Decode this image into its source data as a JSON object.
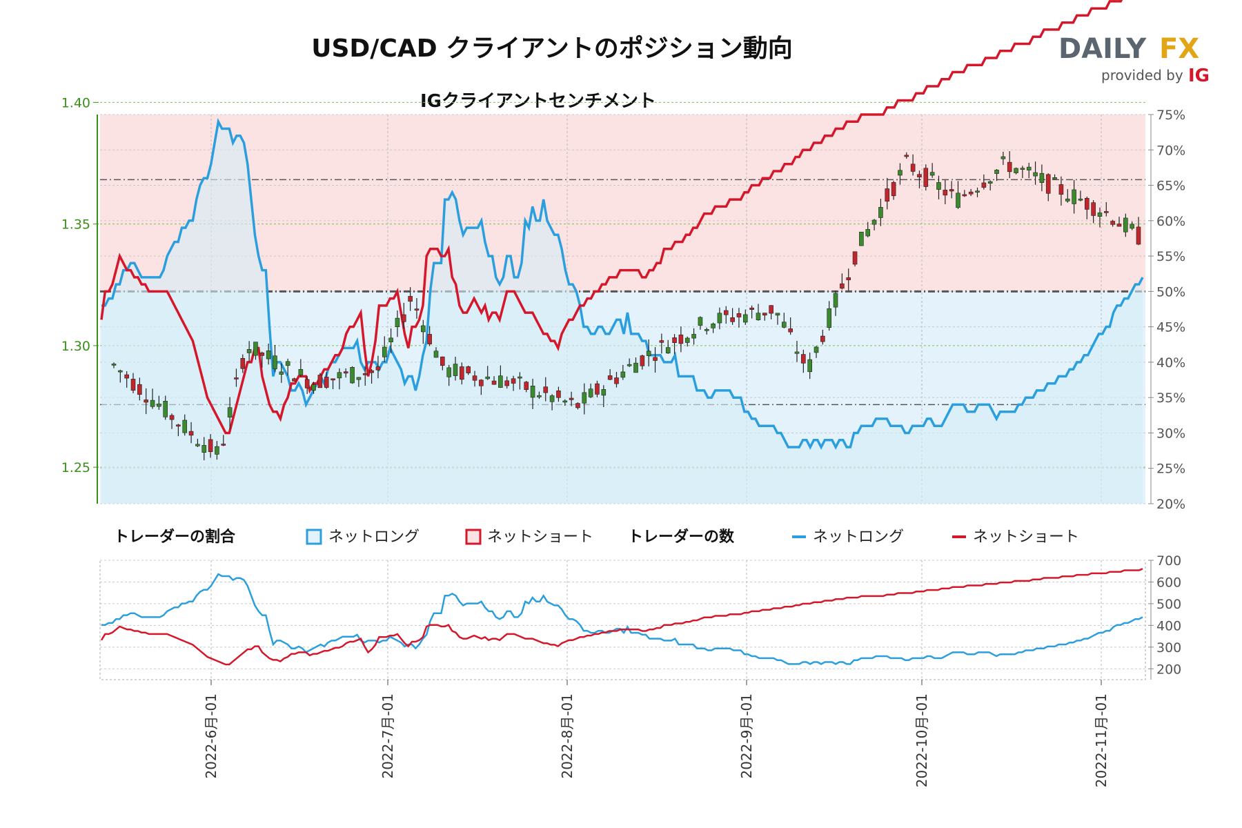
{
  "title": "USD/CAD クライアントのポジション動向",
  "logo": {
    "brand_a": "DAILY",
    "brand_b": "FX",
    "provided": "provided by",
    "ig": "IG"
  },
  "chart_data": [
    {
      "type": "candlestick",
      "subtitle": "IGクライアントセンチメント",
      "left_axis": {
        "ticks": [
          "1.40",
          "1.35",
          "1.30",
          "1.25"
        ],
        "ylim": [
          1.235,
          1.395
        ]
      },
      "right_axis": {
        "ticks": [
          "75%",
          "70%",
          "65%",
          "60%",
          "55%",
          "50%",
          "45%",
          "40%",
          "35%",
          "30%",
          "25%",
          "20%"
        ],
        "ylim": [
          20,
          75
        ]
      },
      "x_ticks": [
        "2022-6月-01",
        "2022-7月-01",
        "2022-8月-01",
        "2022-9月-01",
        "2022-10月-01",
        "2022-11月-01"
      ],
      "net_long_pct": [
        48,
        48,
        49,
        49,
        51,
        51,
        53,
        53,
        54,
        54,
        53,
        52,
        52,
        52,
        52,
        52,
        52,
        53,
        55,
        56,
        57,
        57,
        59,
        59,
        60,
        60,
        63,
        65,
        66,
        66,
        68,
        71,
        74,
        73,
        73,
        73,
        71,
        72,
        72,
        71,
        68,
        63,
        58,
        55,
        53,
        53,
        45,
        38,
        40,
        40,
        39,
        38,
        36,
        36,
        37,
        36,
        34,
        35,
        36,
        37,
        38,
        37,
        39,
        40,
        40,
        41,
        42,
        42,
        42,
        42,
        43,
        40,
        39,
        40,
        40,
        40,
        39,
        40,
        40,
        42,
        41,
        40,
        39,
        37,
        38,
        38,
        36,
        38,
        41,
        43,
        50,
        54,
        54,
        54,
        63,
        63,
        64,
        63,
        60,
        58,
        59,
        59,
        59,
        59,
        60,
        57,
        55,
        55,
        52,
        51,
        52,
        55,
        55,
        52,
        52,
        54,
        60,
        59,
        62,
        60,
        60,
        63,
        60,
        59,
        58,
        58,
        56,
        53,
        51,
        51,
        50,
        48,
        45,
        45,
        44,
        44,
        45,
        45,
        44,
        44,
        45,
        46,
        46,
        44,
        47,
        44,
        44,
        44,
        43,
        43,
        41,
        41,
        41,
        41,
        40,
        40,
        40,
        41,
        38,
        38,
        38,
        38,
        38,
        36,
        36,
        36,
        35,
        35,
        36,
        36,
        36,
        36,
        36,
        35,
        35,
        35,
        33,
        33,
        32,
        32,
        31,
        31,
        31,
        31,
        31,
        30,
        30,
        29,
        28,
        28,
        28,
        28,
        29,
        29,
        28,
        29,
        29,
        28,
        29,
        29,
        29,
        28,
        29,
        29,
        28,
        28,
        30,
        30,
        31,
        31,
        31,
        31,
        32,
        32,
        32,
        32,
        31,
        31,
        31,
        31,
        30,
        30,
        31,
        31,
        31,
        31,
        32,
        32,
        31,
        31,
        31,
        32,
        33,
        34,
        34,
        34,
        34,
        33,
        33,
        33,
        34,
        34,
        34,
        34,
        33,
        32,
        33,
        33,
        33,
        33,
        33,
        34,
        34,
        35,
        35,
        35,
        36,
        36,
        36,
        37,
        37,
        37,
        38,
        38,
        38,
        39,
        39,
        40,
        40,
        41,
        41,
        42,
        43,
        44,
        44,
        45,
        45,
        47,
        48,
        48,
        49,
        49,
        50,
        51,
        51,
        52
      ],
      "net_short_pct": [
        46,
        50,
        50,
        51,
        53,
        55,
        54,
        53,
        53,
        52,
        52,
        51,
        51,
        50,
        50,
        50,
        50,
        50,
        50,
        49,
        48,
        47,
        46,
        45,
        44,
        43,
        41,
        39,
        37,
        35,
        34,
        33,
        32,
        31,
        30,
        30,
        32,
        34,
        36,
        38,
        40,
        40,
        42,
        42,
        38,
        36,
        34,
        33,
        33,
        32,
        34,
        35,
        37,
        37,
        38,
        38,
        38,
        36,
        37,
        37,
        38,
        39,
        39,
        40,
        41,
        41,
        42,
        44,
        45,
        45,
        46,
        47,
        42,
        38,
        40,
        43,
        48,
        48,
        48,
        49,
        49,
        50,
        47,
        44,
        42,
        45,
        45,
        46,
        48,
        55,
        56,
        56,
        56,
        55,
        55,
        56,
        52,
        51,
        48,
        47,
        47,
        48,
        49,
        48,
        47,
        48,
        46,
        47,
        47,
        46,
        48,
        50,
        50,
        50,
        49,
        48,
        47,
        47,
        47,
        46,
        45,
        44,
        44,
        43,
        43,
        42,
        44,
        45,
        46,
        46,
        47,
        48,
        48,
        49,
        49,
        50,
        50,
        51,
        51,
        52,
        52,
        52,
        53,
        53,
        53,
        53,
        53,
        53,
        52,
        52,
        53,
        53,
        54,
        54,
        56,
        56,
        56,
        57,
        57,
        57,
        58,
        58,
        59,
        59,
        60,
        61,
        61,
        61,
        62,
        62,
        62,
        62,
        63,
        63,
        63,
        63,
        64,
        64,
        65,
        65,
        65,
        66,
        66,
        66,
        67,
        67,
        67,
        68,
        68,
        68,
        69,
        69,
        70,
        70,
        70,
        71,
        71,
        71,
        72,
        72,
        72,
        73,
        73,
        73,
        74,
        74,
        74,
        74,
        75,
        75,
        75,
        75,
        75,
        75,
        75,
        76,
        76,
        76,
        77,
        77,
        77,
        77,
        77,
        78,
        78,
        78,
        79,
        79,
        79,
        79,
        80,
        80,
        80,
        81,
        81,
        81,
        81,
        82,
        82,
        82,
        82,
        82,
        83,
        83,
        83,
        83,
        84,
        84,
        84,
        84,
        85,
        85,
        85,
        85,
        85,
        86,
        86,
        86,
        87,
        87,
        87,
        87,
        87,
        88,
        88,
        88,
        88,
        89,
        89,
        89,
        89,
        90,
        90,
        90,
        90,
        90,
        91,
        91,
        91,
        91,
        92,
        92,
        92,
        92,
        92,
        93
      ]
    },
    {
      "type": "line",
      "label": "トレーダーの数",
      "right_axis": {
        "ticks": [
          "700",
          "600",
          "500",
          "400",
          "300",
          "200"
        ],
        "ylim": [
          150,
          700
        ]
      },
      "series": [
        {
          "name": "ネットロング",
          "color": "#2b9fde"
        },
        {
          "name": "ネットショート",
          "color": "#d4172a"
        }
      ]
    }
  ],
  "legend": {
    "ratio_label": "トレーダーの割合",
    "count_label": "トレーダーの数",
    "net_long": "ネットロング",
    "net_short": "ネットショート"
  },
  "colors": {
    "long": "#2b9fde",
    "short": "#d4172a",
    "long_fill": "#e3f2fb",
    "short_fill": "#fbe3e3",
    "up": "#3c8a2e",
    "down": "#c0262c",
    "axis": "#3a8f1a"
  }
}
